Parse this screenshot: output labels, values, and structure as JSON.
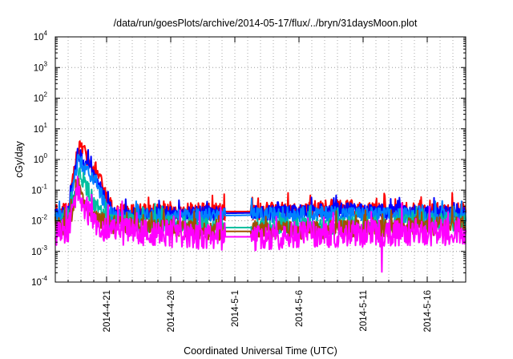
{
  "chart_data": {
    "type": "line",
    "title": "/data/run/goesPlots/archive/2014-05-17/flux/../bryn/31daysMoon.plot",
    "xlabel": "Coordinated Universal Time (UTC)",
    "ylabel": "cGy/day",
    "yscale": "log",
    "xlim": [
      "2014-04-17",
      "2014-05-19"
    ],
    "ylim": [
      0.0001,
      10000
    ],
    "y_ticks": [
      {
        "base": "10",
        "exp": "-4",
        "value": 0.0001
      },
      {
        "base": "10",
        "exp": "-3",
        "value": 0.001
      },
      {
        "base": "10",
        "exp": "-2",
        "value": 0.01
      },
      {
        "base": "10",
        "exp": "-1",
        "value": 0.1
      },
      {
        "base": "10",
        "exp": "0",
        "value": 1
      },
      {
        "base": "10",
        "exp": "1",
        "value": 10
      },
      {
        "base": "10",
        "exp": "2",
        "value": 100
      },
      {
        "base": "10",
        "exp": "3",
        "value": 1000
      },
      {
        "base": "10",
        "exp": "4",
        "value": 10000
      }
    ],
    "x_ticks": [
      {
        "label": "2014-4-21",
        "date": "2014-04-21"
      },
      {
        "label": "2014-4-26",
        "date": "2014-04-26"
      },
      {
        "label": "2014-5-1",
        "date": "2014-05-01"
      },
      {
        "label": "2014-5-6",
        "date": "2014-05-06"
      },
      {
        "label": "2014-5-11",
        "date": "2014-05-11"
      },
      {
        "label": "2014-5-16",
        "date": "2014-05-16"
      }
    ],
    "grid": true,
    "legend": "none",
    "series": [
      {
        "color": "#ff0000",
        "base": 0.02,
        "noise": 0.28,
        "points": [
          [
            "2014-04-17",
            0.018
          ],
          [
            "2014-04-18",
            0.02
          ],
          [
            "2014-04-18T12:00",
            0.4
          ],
          [
            "2014-04-18T18:00",
            2.5
          ],
          [
            "2014-04-19",
            2.0
          ],
          [
            "2014-04-19T12:00",
            1.2
          ],
          [
            "2014-04-20",
            0.5
          ],
          [
            "2014-04-20T12:00",
            0.2
          ],
          [
            "2014-04-21",
            0.05
          ],
          [
            "2014-04-21T12:00",
            0.022
          ],
          [
            "2014-04-22",
            0.02
          ],
          [
            "2014-04-30T06:00",
            0.02
          ],
          [
            "2014-05-02T06:00",
            0.02
          ],
          [
            "2014-05-07",
            0.024
          ],
          [
            "2014-05-09",
            0.028
          ],
          [
            "2014-05-12",
            0.022
          ],
          [
            "2014-05-19",
            0.02
          ]
        ]
      },
      {
        "color": "#0000ff",
        "base": 0.016,
        "noise": 0.25,
        "points": [
          [
            "2014-04-17",
            0.014
          ],
          [
            "2014-04-18",
            0.016
          ],
          [
            "2014-04-18T12:00",
            0.3
          ],
          [
            "2014-04-18T18:00",
            1.5
          ],
          [
            "2014-04-19",
            1.2
          ],
          [
            "2014-04-19T12:00",
            0.7
          ],
          [
            "2014-04-20",
            0.3
          ],
          [
            "2014-04-20T12:00",
            0.12
          ],
          [
            "2014-04-21",
            0.035
          ],
          [
            "2014-04-21T12:00",
            0.017
          ],
          [
            "2014-04-22",
            0.016
          ],
          [
            "2014-05-07",
            0.019
          ],
          [
            "2014-05-09",
            0.022
          ],
          [
            "2014-05-19",
            0.016
          ]
        ]
      },
      {
        "color": "#0080ff",
        "base": 0.013,
        "noise": 0.25,
        "points": [
          [
            "2014-04-17",
            0.012
          ],
          [
            "2014-04-18",
            0.013
          ],
          [
            "2014-04-18T12:00",
            0.2
          ],
          [
            "2014-04-18T18:00",
            0.9
          ],
          [
            "2014-04-19",
            0.75
          ],
          [
            "2014-04-19T12:00",
            0.45
          ],
          [
            "2014-04-20",
            0.2
          ],
          [
            "2014-04-20T12:00",
            0.08
          ],
          [
            "2014-04-21",
            0.025
          ],
          [
            "2014-04-21T12:00",
            0.014
          ],
          [
            "2014-04-22",
            0.013
          ],
          [
            "2014-05-09",
            0.017
          ],
          [
            "2014-05-19",
            0.013
          ]
        ]
      },
      {
        "color": "#00c0a0",
        "base": 0.009,
        "noise": 0.3,
        "points": [
          [
            "2014-04-17",
            0.008
          ],
          [
            "2014-04-18",
            0.009
          ],
          [
            "2014-04-18T12:00",
            0.08
          ],
          [
            "2014-04-18T18:00",
            0.35
          ],
          [
            "2014-04-19",
            0.25
          ],
          [
            "2014-04-19T12:00",
            0.12
          ],
          [
            "2014-04-20",
            0.04
          ],
          [
            "2014-04-20T12:00",
            0.02
          ],
          [
            "2014-04-21",
            0.012
          ],
          [
            "2014-04-22",
            0.009
          ],
          [
            "2014-04-30T06:00",
            0.006
          ],
          [
            "2014-05-02T06:00",
            0.006
          ],
          [
            "2014-05-19",
            0.009
          ]
        ]
      },
      {
        "color": "#a05000",
        "base": 0.007,
        "noise": 0.3,
        "points": [
          [
            "2014-04-17",
            0.006
          ],
          [
            "2014-04-18",
            0.007
          ],
          [
            "2014-04-18T12:00",
            0.04
          ],
          [
            "2014-04-18T18:00",
            0.15
          ],
          [
            "2014-04-19",
            0.08
          ],
          [
            "2014-04-19T12:00",
            0.03
          ],
          [
            "2014-04-20",
            0.012
          ],
          [
            "2014-04-21",
            0.008
          ],
          [
            "2014-04-22",
            0.007
          ],
          [
            "2014-04-30T06:00",
            0.0045
          ],
          [
            "2014-05-02T06:00",
            0.0045
          ],
          [
            "2014-05-19",
            0.007
          ]
        ]
      },
      {
        "color": "#ff00ff",
        "base": 0.0045,
        "noise": 0.45,
        "points": [
          [
            "2014-04-17",
            0.004
          ],
          [
            "2014-04-18",
            0.0045
          ],
          [
            "2014-04-18T12:00",
            0.03
          ],
          [
            "2014-04-18T18:00",
            0.12
          ],
          [
            "2014-04-19",
            0.06
          ],
          [
            "2014-04-19T12:00",
            0.02
          ],
          [
            "2014-04-20",
            0.008
          ],
          [
            "2014-04-21",
            0.005
          ],
          [
            "2014-04-22",
            0.0045
          ],
          [
            "2014-04-30T06:00",
            0.003
          ],
          [
            "2014-05-02T06:00",
            0.003
          ],
          [
            "2014-05-12T10:00",
            0.004
          ],
          [
            "2014-05-12T11:00",
            0.00015
          ],
          [
            "2014-05-12T12:00",
            0.004
          ],
          [
            "2014-05-19",
            0.0045
          ]
        ]
      }
    ],
    "gap": {
      "start": "2014-04-30T06:00",
      "end": "2014-05-02T06:00"
    }
  }
}
